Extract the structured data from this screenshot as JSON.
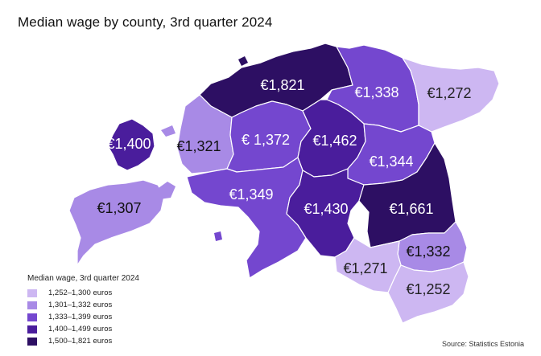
{
  "title": "Median wage by county, 3rd quarter 2024",
  "source": "Source: Statistics Estonia",
  "legend": {
    "title": "Median wage, 3rd quarter 2024",
    "items": [
      {
        "label": "1,252–1,300 euros",
        "color": "#cdb7f2"
      },
      {
        "label": "1,301–1,332 euros",
        "color": "#a88ae6"
      },
      {
        "label": "1,333–1,399 euros",
        "color": "#7447cf"
      },
      {
        "label": "1,400–1,499 euros",
        "color": "#4a1d9c"
      },
      {
        "label": "1,500–1,821 euros",
        "color": "#2d0f63"
      }
    ]
  },
  "counties": [
    {
      "id": "harju",
      "value": "€1,821",
      "color": "#2d0f63",
      "text_color": "#ffffff"
    },
    {
      "id": "laane-viru",
      "value": "€1,338",
      "color": "#7447cf",
      "text_color": "#ffffff"
    },
    {
      "id": "ida-viru",
      "value": "€1,272",
      "color": "#cdb7f2",
      "text_color": "#222222"
    },
    {
      "id": "hiiu",
      "value": "€1,400",
      "color": "#4a1d9c",
      "text_color": "#ffffff"
    },
    {
      "id": "laane",
      "value": "€1,321",
      "color": "#a88ae6",
      "text_color": "#111111"
    },
    {
      "id": "rapla",
      "value": "€ 1,372",
      "color": "#7447cf",
      "text_color": "#ffffff"
    },
    {
      "id": "jarva",
      "value": "€1,462",
      "color": "#4a1d9c",
      "text_color": "#ffffff"
    },
    {
      "id": "jogeva",
      "value": "€1,344",
      "color": "#7447cf",
      "text_color": "#ffffff"
    },
    {
      "id": "saare",
      "value": "€1,307",
      "color": "#a88ae6",
      "text_color": "#111111"
    },
    {
      "id": "parnu",
      "value": "€1,349",
      "color": "#7447cf",
      "text_color": "#ffffff"
    },
    {
      "id": "viljandi",
      "value": "€1,430",
      "color": "#4a1d9c",
      "text_color": "#ffffff"
    },
    {
      "id": "tartu",
      "value": "€1,661",
      "color": "#2d0f63",
      "text_color": "#ffffff"
    },
    {
      "id": "polva",
      "value": "€1,332",
      "color": "#a88ae6",
      "text_color": "#111111"
    },
    {
      "id": "valga",
      "value": "€1,271",
      "color": "#cdb7f2",
      "text_color": "#222222"
    },
    {
      "id": "voru",
      "value": "€1,252",
      "color": "#cdb7f2",
      "text_color": "#222222"
    }
  ]
}
